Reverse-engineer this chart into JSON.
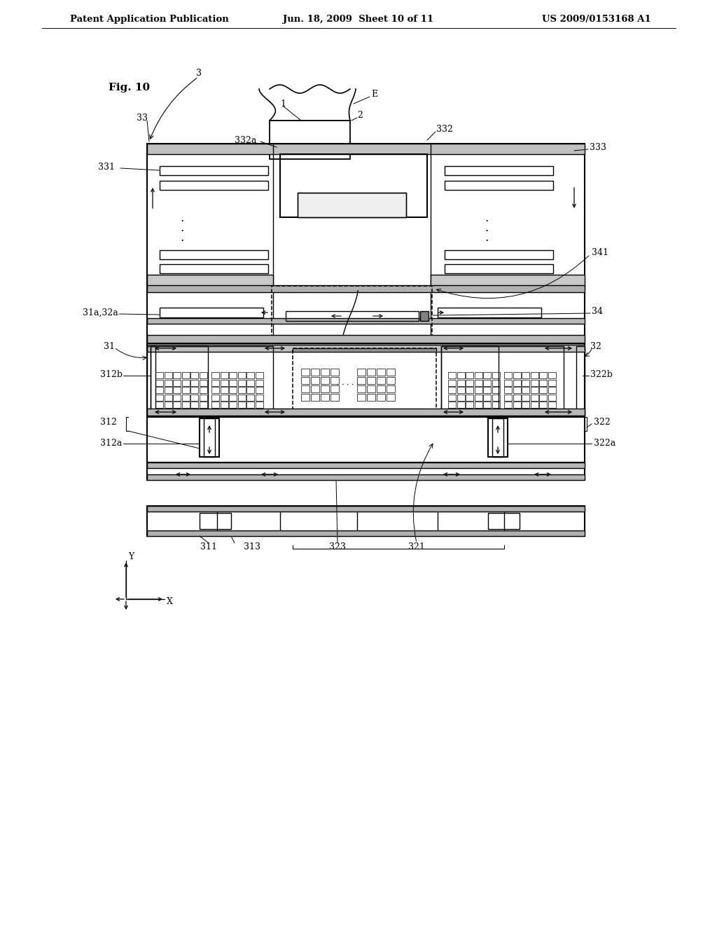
{
  "bg_color": "#ffffff",
  "line_color": "#000000",
  "header_left": "Patent Application Publication",
  "header_mid": "Jun. 18, 2009  Sheet 10 of 11",
  "header_right": "US 2009/0153168 A1",
  "fig_label": "Fig. 10"
}
